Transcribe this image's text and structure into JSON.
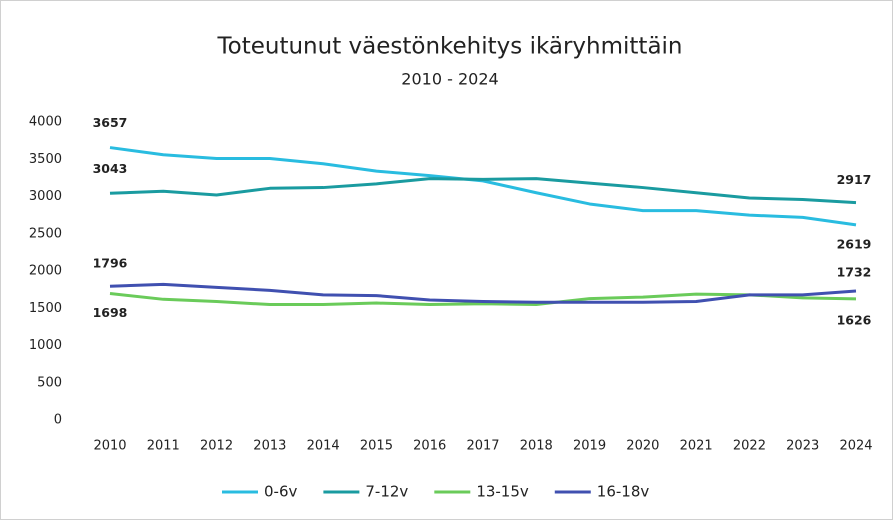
{
  "chart_data": {
    "type": "line",
    "title": "Toteutunut väestönkehitys ikäryhmittäin",
    "subtitle": "2010 - 2024",
    "categories": [
      "2010",
      "2011",
      "2012",
      "2013",
      "2014",
      "2015",
      "2016",
      "2017",
      "2018",
      "2019",
      "2020",
      "2021",
      "2022",
      "2023",
      "2024"
    ],
    "series": [
      {
        "name": "0-6v",
        "color": "#29bce0",
        "values": [
          3657,
          3560,
          3510,
          3510,
          3440,
          3340,
          3280,
          3210,
          3050,
          2900,
          2810,
          2810,
          2750,
          2720,
          2619
        ]
      },
      {
        "name": "7-12v",
        "color": "#1a9ba0",
        "values": [
          3043,
          3070,
          3020,
          3110,
          3120,
          3170,
          3240,
          3230,
          3240,
          3180,
          3120,
          3050,
          2980,
          2960,
          2917
        ]
      },
      {
        "name": "13-15v",
        "color": "#6acb5a",
        "values": [
          1698,
          1620,
          1590,
          1550,
          1550,
          1570,
          1550,
          1560,
          1550,
          1630,
          1650,
          1690,
          1680,
          1640,
          1626
        ]
      },
      {
        "name": "16-18v",
        "color": "#4050b0",
        "values": [
          1796,
          1820,
          1780,
          1740,
          1680,
          1670,
          1610,
          1590,
          1580,
          1580,
          1580,
          1590,
          1680,
          1680,
          1732
        ]
      }
    ],
    "ylim": [
      0,
      4000
    ],
    "yticks": [
      0,
      500,
      1000,
      1500,
      2000,
      2500,
      3000,
      3500,
      4000
    ],
    "legend": "bottom"
  }
}
